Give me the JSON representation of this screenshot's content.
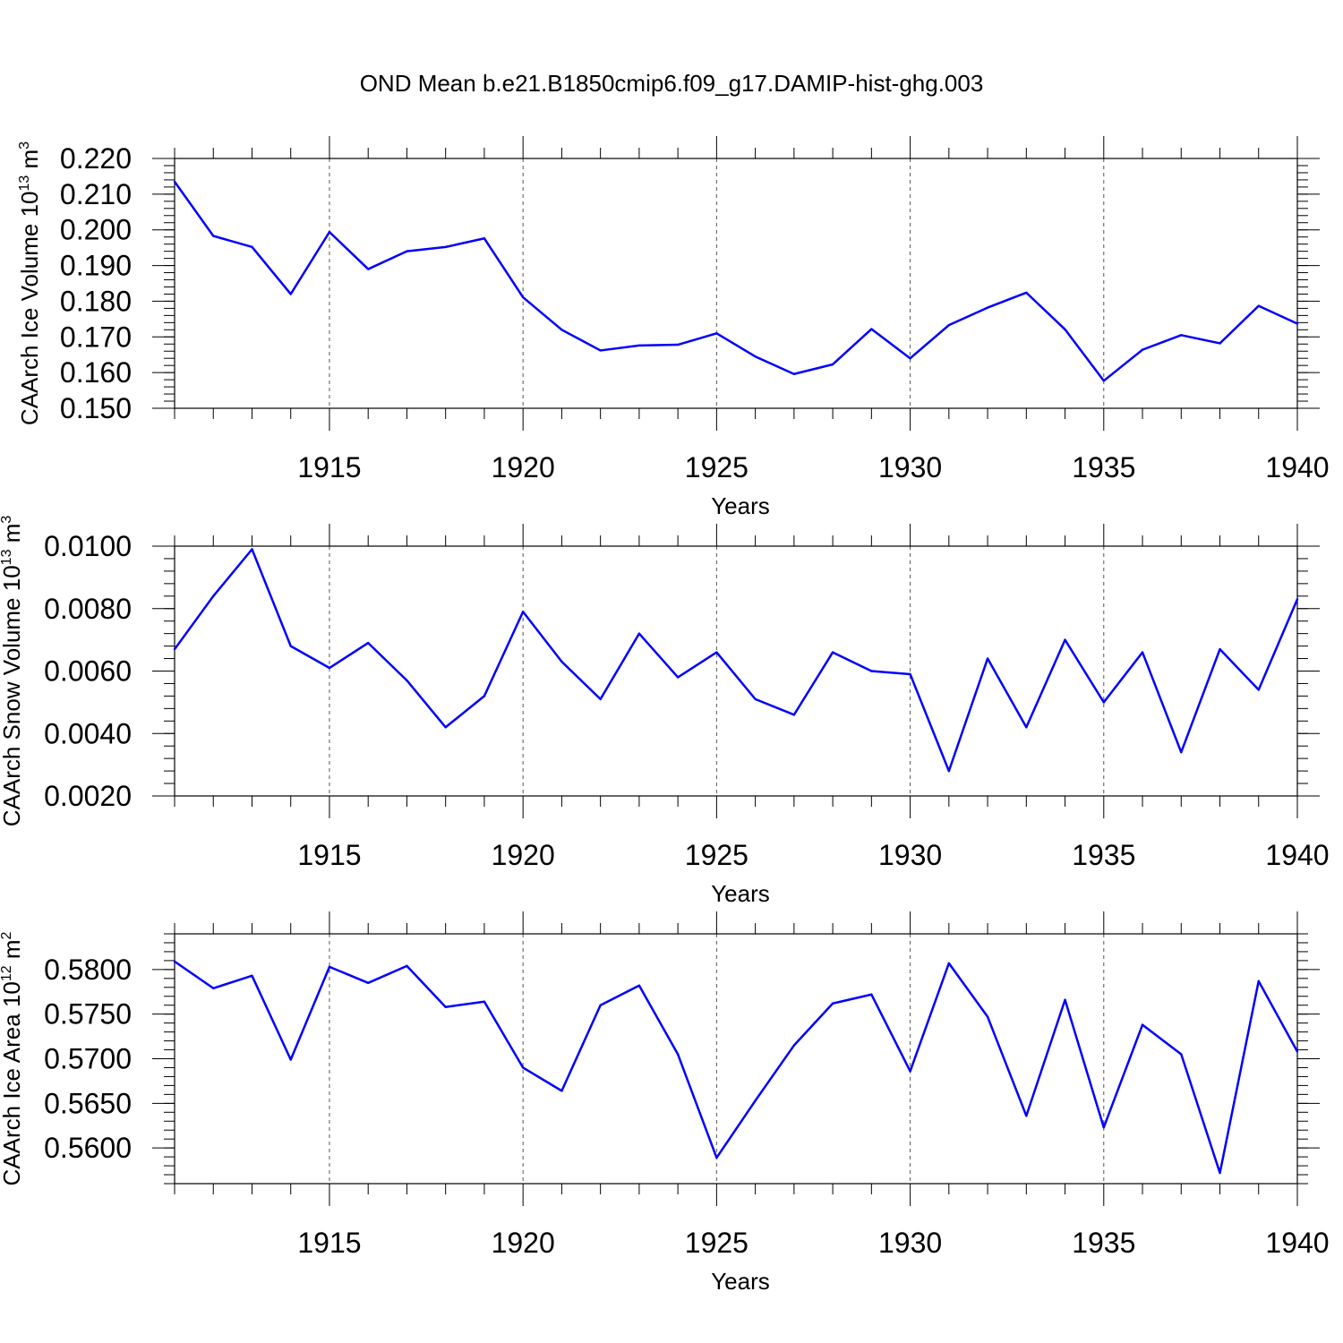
{
  "figure_title": "OND Mean b.e21.B1850cmip6.f09_g17.DAMIP-hist-ghg.003",
  "colors": {
    "line": "#0000ff",
    "axes": "#000000",
    "grid": "#555555"
  },
  "chart_data": [
    {
      "type": "line",
      "ylabel": "CAArch Ice Volume 10",
      "ylabel_exp": "13",
      "ylabel_unit": " m",
      "ylabel_unit_exp": "3",
      "xlabel": "Years",
      "xlim": [
        1911,
        1940
      ],
      "ylim": [
        0.15,
        0.22
      ],
      "x_ticks": [
        1915,
        1920,
        1925,
        1930,
        1935,
        1940
      ],
      "y_ticks": [
        "0.150",
        "0.160",
        "0.170",
        "0.180",
        "0.190",
        "0.200",
        "0.210",
        "0.220"
      ],
      "grid": "vertical dashed at major x ticks",
      "x": [
        1911,
        1912,
        1913,
        1914,
        1915,
        1916,
        1917,
        1918,
        1919,
        1920,
        1921,
        1922,
        1923,
        1924,
        1925,
        1926,
        1927,
        1928,
        1929,
        1930,
        1931,
        1932,
        1933,
        1934,
        1935,
        1936,
        1937,
        1938,
        1939,
        1940
      ],
      "values": [
        0.2135,
        0.1983,
        0.1952,
        0.182,
        0.1994,
        0.189,
        0.194,
        0.1952,
        0.1976,
        0.1811,
        0.172,
        0.1662,
        0.1676,
        0.1678,
        0.171,
        0.1645,
        0.1596,
        0.1623,
        0.1722,
        0.164,
        0.1733,
        0.1782,
        0.1824,
        0.1721,
        0.1577,
        0.1664,
        0.1705,
        0.1682,
        0.1787,
        0.1737
      ]
    },
    {
      "type": "line",
      "ylabel": "CAArch Snow Volume 10",
      "ylabel_exp": "13",
      "ylabel_unit": " m",
      "ylabel_unit_exp": "3",
      "xlabel": "Years",
      "xlim": [
        1911,
        1940
      ],
      "ylim": [
        0.002,
        0.01
      ],
      "x_ticks": [
        1915,
        1920,
        1925,
        1930,
        1935,
        1940
      ],
      "y_ticks": [
        "0.0020",
        "0.0040",
        "0.0060",
        "0.0080",
        "0.0100"
      ],
      "grid": "vertical dashed at major x ticks",
      "x": [
        1911,
        1912,
        1913,
        1914,
        1915,
        1916,
        1917,
        1918,
        1919,
        1920,
        1921,
        1922,
        1923,
        1924,
        1925,
        1926,
        1927,
        1928,
        1929,
        1930,
        1931,
        1932,
        1933,
        1934,
        1935,
        1936,
        1937,
        1938,
        1939,
        1940
      ],
      "values": [
        0.0067,
        0.0084,
        0.0099,
        0.0068,
        0.0061,
        0.0069,
        0.0057,
        0.0042,
        0.0052,
        0.0079,
        0.0063,
        0.0051,
        0.0072,
        0.0058,
        0.0066,
        0.0051,
        0.0046,
        0.0066,
        0.006,
        0.0059,
        0.0028,
        0.0064,
        0.0042,
        0.007,
        0.005,
        0.0066,
        0.0034,
        0.0067,
        0.0054,
        0.0083
      ]
    },
    {
      "type": "line",
      "ylabel": "CAArch Ice Area 10",
      "ylabel_exp": "12",
      "ylabel_unit": " m",
      "ylabel_unit_exp": "2",
      "xlabel": "Years",
      "xlim": [
        1911,
        1940
      ],
      "ylim": [
        0.556,
        0.584
      ],
      "x_ticks": [
        1915,
        1920,
        1925,
        1930,
        1935,
        1940
      ],
      "y_ticks": [
        "0.5600",
        "0.5650",
        "0.5700",
        "0.5750",
        "0.5800"
      ],
      "grid": "vertical dashed at major x ticks",
      "x": [
        1911,
        1912,
        1913,
        1914,
        1915,
        1916,
        1917,
        1918,
        1919,
        1920,
        1921,
        1922,
        1923,
        1924,
        1925,
        1926,
        1927,
        1928,
        1929,
        1930,
        1931,
        1932,
        1933,
        1934,
        1935,
        1936,
        1937,
        1938,
        1939,
        1940
      ],
      "values": [
        0.5809,
        0.5779,
        0.5793,
        0.5699,
        0.5803,
        0.5785,
        0.5804,
        0.5758,
        0.5764,
        0.569,
        0.5664,
        0.576,
        0.5782,
        0.5705,
        0.5589,
        0.5653,
        0.5715,
        0.5762,
        0.5772,
        0.5686,
        0.5807,
        0.5747,
        0.5636,
        0.5766,
        0.5623,
        0.5738,
        0.5705,
        0.5572,
        0.5787,
        0.5708
      ]
    }
  ]
}
